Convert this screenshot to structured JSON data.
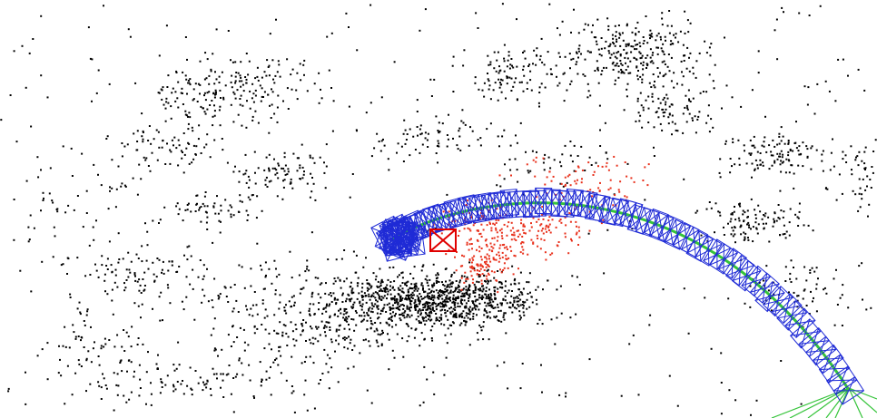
{
  "viewer": {
    "background": "#ffffff",
    "colors": {
      "map_points": "#000000",
      "local_map_points": "#e8311c",
      "keyframes": "#1f2bd6",
      "current_camera": "#e00000",
      "covisibility_graph": "#35c43a"
    },
    "layers": [
      "map-points",
      "local-map-points",
      "keyframes",
      "covisibility-graph",
      "current-camera"
    ]
  }
}
